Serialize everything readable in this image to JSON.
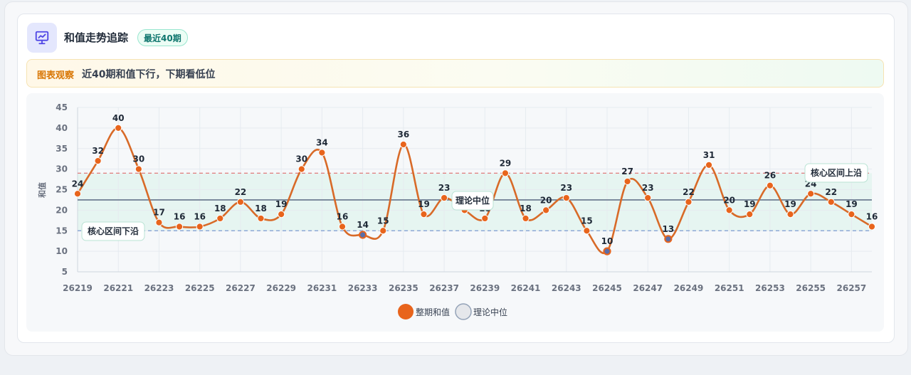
{
  "header": {
    "title": "和值走势追踪",
    "badge": "最近40期"
  },
  "insight": {
    "label": "图表观察",
    "text": "近40期和值下行，下期看低位"
  },
  "colors": {
    "series": "#e8641c",
    "series_line": "#d86a28",
    "upper_line": "#e07b7b",
    "lower_line": "#7d9bd1",
    "median_line": "#64748b",
    "band_fill": "#e3f4ee",
    "low_point": "#5b6ea8"
  },
  "chart_data": {
    "type": "line",
    "ylabel": "和值",
    "ylim": [
      5,
      45
    ],
    "yticks": [
      5,
      10,
      15,
      20,
      25,
      30,
      35,
      40,
      45
    ],
    "x": [
      "26219",
      "26220",
      "26221",
      "26222",
      "26223",
      "26224",
      "26225",
      "26226",
      "26227",
      "26228",
      "26229",
      "26230",
      "26231",
      "26232",
      "26233",
      "26234",
      "26235",
      "26236",
      "26237",
      "26238",
      "26239",
      "26240",
      "26241",
      "26242",
      "26243",
      "26244",
      "26245",
      "26246",
      "26247",
      "26248",
      "26249",
      "26250",
      "26251",
      "26252",
      "26253",
      "26254",
      "26255",
      "26256",
      "26257",
      "26258"
    ],
    "xtick_labels": [
      "26219",
      "26221",
      "26223",
      "26225",
      "26227",
      "26229",
      "26231",
      "26233",
      "26235",
      "26237",
      "26239",
      "26241",
      "26243",
      "26245",
      "26247",
      "26249",
      "26251",
      "26253",
      "26255",
      "26257"
    ],
    "series": [
      {
        "name": "整期和值",
        "values": [
          24,
          32,
          40,
          30,
          17,
          16,
          16,
          18,
          22,
          18,
          19,
          30,
          34,
          16,
          14,
          15,
          36,
          19,
          23,
          20,
          18,
          29,
          18,
          20,
          23,
          15,
          10,
          27,
          23,
          13,
          22,
          31,
          20,
          19,
          26,
          19,
          24,
          22,
          19,
          16
        ]
      }
    ],
    "reference_lines": {
      "median": {
        "value": 22.5,
        "label": "理论中位"
      },
      "upper": {
        "value": 29,
        "label": "核心区间上沿"
      },
      "lower": {
        "value": 15,
        "label": "核心区间下沿"
      }
    },
    "legend": [
      "整期和值",
      "理论中位"
    ],
    "legend_position": "bottom"
  }
}
